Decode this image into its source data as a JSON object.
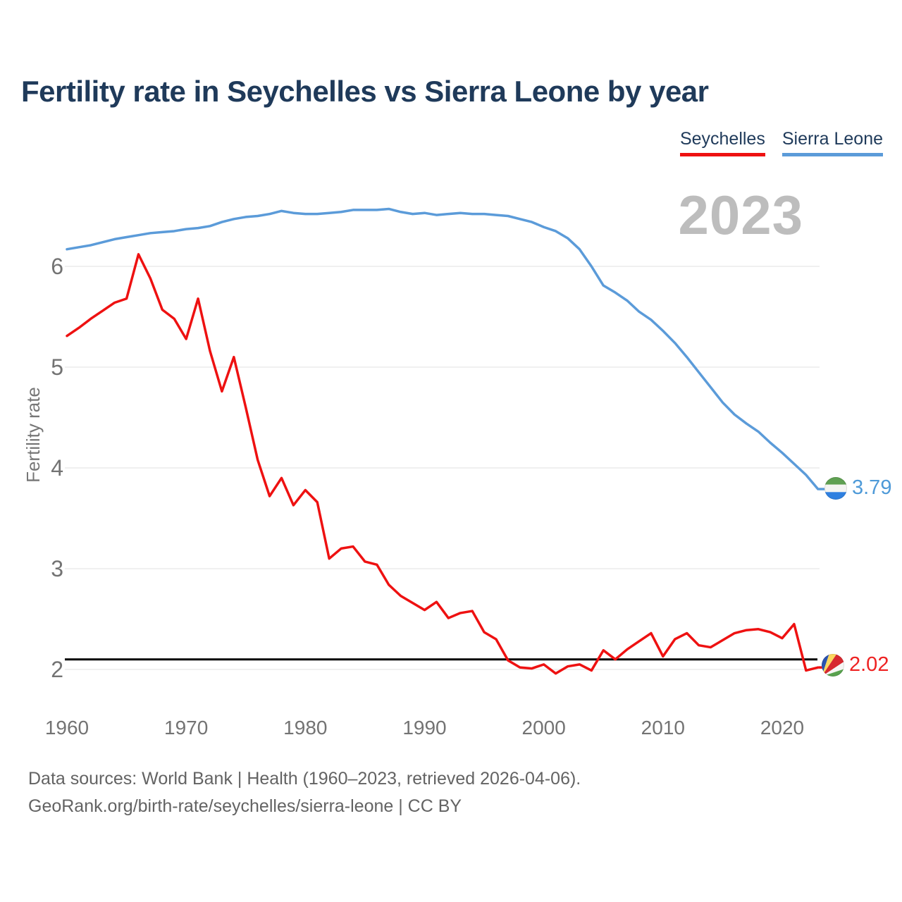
{
  "title": "Fertility rate in Seychelles vs Sierra Leone by year",
  "watermark": "2023",
  "legend": [
    {
      "label": "Seychelles",
      "color": "#ee1111"
    },
    {
      "label": "Sierra Leone",
      "color": "#5b9bd9"
    }
  ],
  "axes": {
    "y_title": "Fertility rate",
    "y_ticks": [
      2,
      3,
      4,
      5,
      6
    ],
    "x_ticks": [
      1960,
      1970,
      1980,
      1990,
      2000,
      2010,
      2020
    ],
    "tick_color": "#737373",
    "grid_color": "#e7e7e7"
  },
  "reference_line": {
    "value": 2.1,
    "color": "#000000"
  },
  "end_labels": [
    {
      "series": "Sierra Leone",
      "value": "3.79",
      "color": "#4e9ad8",
      "flag": "sierra-leone"
    },
    {
      "series": "Seychelles",
      "value": "2.02",
      "color": "#ee2222",
      "flag": "seychelles"
    }
  ],
  "footer": {
    "line1": "Data sources: World Bank | Health (1960–2023, retrieved 2026-04-06).",
    "line2": "GeoRank.org/birth-rate/seychelles/sierra-leone | CC BY"
  },
  "chart_data": {
    "type": "line",
    "title": "Fertility rate in Seychelles vs Sierra Leone by year",
    "xlabel": "",
    "ylabel": "Fertility rate",
    "ylim": [
      1.7,
      6.7
    ],
    "xlim": [
      1960,
      2023
    ],
    "grid": "horizontal",
    "legend_position": "top-right",
    "x": [
      1960,
      1961,
      1962,
      1963,
      1964,
      1965,
      1966,
      1967,
      1968,
      1969,
      1970,
      1971,
      1972,
      1973,
      1974,
      1975,
      1976,
      1977,
      1978,
      1979,
      1980,
      1981,
      1982,
      1983,
      1984,
      1985,
      1986,
      1987,
      1988,
      1989,
      1990,
      1991,
      1992,
      1993,
      1994,
      1995,
      1996,
      1997,
      1998,
      1999,
      2000,
      2001,
      2002,
      2003,
      2004,
      2005,
      2006,
      2007,
      2008,
      2009,
      2010,
      2011,
      2012,
      2013,
      2014,
      2015,
      2016,
      2017,
      2018,
      2019,
      2020,
      2021,
      2022,
      2023
    ],
    "series": [
      {
        "name": "Seychelles",
        "color": "#ee1111",
        "values": [
          5.31,
          5.39,
          5.48,
          5.56,
          5.64,
          5.68,
          6.12,
          5.88,
          5.57,
          5.48,
          5.28,
          5.68,
          5.16,
          4.76,
          5.1,
          4.6,
          4.08,
          3.72,
          3.9,
          3.63,
          3.78,
          3.66,
          3.1,
          3.2,
          3.22,
          3.07,
          3.04,
          2.84,
          2.73,
          2.66,
          2.59,
          2.67,
          2.51,
          2.56,
          2.58,
          2.37,
          2.3,
          2.09,
          2.02,
          2.01,
          2.05,
          1.96,
          2.03,
          2.05,
          1.99,
          2.19,
          2.1,
          2.2,
          2.28,
          2.36,
          2.13,
          2.3,
          2.36,
          2.24,
          2.22,
          2.29,
          2.36,
          2.39,
          2.4,
          2.37,
          2.31,
          2.45,
          1.99,
          2.02
        ]
      },
      {
        "name": "Sierra Leone",
        "color": "#5b9bd9",
        "values": [
          6.17,
          6.19,
          6.21,
          6.24,
          6.27,
          6.29,
          6.31,
          6.33,
          6.34,
          6.35,
          6.37,
          6.38,
          6.4,
          6.44,
          6.47,
          6.49,
          6.5,
          6.52,
          6.55,
          6.53,
          6.52,
          6.52,
          6.53,
          6.54,
          6.56,
          6.56,
          6.56,
          6.57,
          6.54,
          6.52,
          6.53,
          6.51,
          6.52,
          6.53,
          6.52,
          6.52,
          6.51,
          6.5,
          6.47,
          6.44,
          6.39,
          6.35,
          6.28,
          6.17,
          6.0,
          5.81,
          5.74,
          5.66,
          5.55,
          5.47,
          5.36,
          5.24,
          5.1,
          4.95,
          4.8,
          4.65,
          4.53,
          4.44,
          4.36,
          4.25,
          4.15,
          4.04,
          3.93,
          3.79
        ]
      }
    ]
  }
}
